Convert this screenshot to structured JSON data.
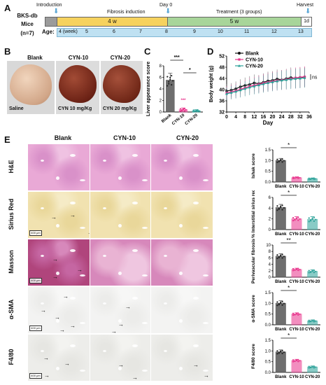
{
  "panel_labels": [
    "A",
    "B",
    "C",
    "D",
    "E"
  ],
  "timeline": {
    "model": "BKS-db",
    "mice_label": "Mice",
    "n_label": "(n=7)",
    "age_label": "Age:",
    "introduction": "Introduction",
    "fibrosis_induction": "Fibrosis induction",
    "day0": "Day 0",
    "treatment": "Treatment (3 groups)",
    "harvest": "Harvest",
    "fibrosis_duration": "4 w",
    "treatment_duration": "5 w",
    "harvest_duration": "1d",
    "ages": [
      "4 (week)",
      "5",
      "6",
      "7",
      "8",
      "9",
      "10",
      "11",
      "12",
      "13"
    ]
  },
  "livers": {
    "headers": [
      "Blank",
      "CYN-10",
      "CYN-20"
    ],
    "captions": [
      "Saline",
      "CYN 10 mg/Kg",
      "CYN 20 mg/Kg"
    ]
  },
  "histology": {
    "columns": [
      "Blank",
      "CYN-10",
      "CYN-20"
    ],
    "rows": [
      "H&E",
      "Sirius Red",
      "Masson",
      "α-SMA",
      "F4/80"
    ],
    "scalebar": "400 μm"
  },
  "colors": {
    "blank": "#555555",
    "cyn10": "#e8338b",
    "cyn20": "#2aa198",
    "fibrosis_bar": "#f6d25e",
    "treatment_bar": "#a8d59a",
    "age_bar": "#bfe1f2",
    "arrow_marker": "#5aa7d6"
  },
  "chart_data": [
    {
      "type": "bar",
      "panel": "C",
      "ylabel": "Liver appearance score",
      "categories": [
        "Blank",
        "CYN-10",
        "CYN-20"
      ],
      "values": [
        5.5,
        0.4,
        0.2
      ],
      "errors": [
        1.2,
        0.3,
        0.2
      ],
      "ylim": [
        0,
        8
      ],
      "yticks": [
        0,
        2,
        4,
        6,
        8
      ],
      "significance": [
        {
          "from": 0,
          "to": 1,
          "label": "***"
        },
        {
          "from": 1,
          "to": 2,
          "label": "*"
        },
        {
          "at": 1,
          "label": "***"
        }
      ]
    },
    {
      "type": "line",
      "panel": "D",
      "xlabel": "Day",
      "ylabel": "Body weight (g)",
      "x": [
        0,
        2,
        4,
        6,
        8,
        10,
        12,
        14,
        16,
        18,
        20,
        22,
        24,
        26,
        28,
        30,
        32,
        34
      ],
      "xticks": [
        0,
        4,
        8,
        12,
        16,
        20,
        24,
        28,
        32,
        36
      ],
      "ylim": [
        32,
        52
      ],
      "yticks": [
        32,
        36,
        40,
        44,
        48,
        52
      ],
      "series": [
        {
          "name": "Blank",
          "values": [
            39.5,
            39.8,
            40.3,
            41.0,
            41.5,
            41.8,
            42.4,
            42.1,
            42.6,
            43.1,
            43.3,
            43.8,
            43.5,
            43.9,
            44.3,
            44.0,
            44.3,
            44.5
          ],
          "err": [
            2.5,
            2.5,
            2.6,
            2.7,
            2.8,
            3.0,
            3.0,
            3.1,
            3.2,
            3.3,
            3.3,
            3.4,
            3.5,
            3.5,
            3.6,
            3.6,
            3.6,
            3.6
          ]
        },
        {
          "name": "CYN-10",
          "values": [
            38.8,
            39.2,
            39.6,
            40.1,
            40.6,
            41.2,
            41.5,
            41.9,
            42.3,
            42.6,
            42.9,
            43.2,
            43.4,
            43.6,
            43.9,
            44.2,
            44.4,
            44.6
          ],
          "err": [
            2.4,
            2.5,
            2.6,
            2.7,
            2.8,
            2.9,
            3.0,
            3.1,
            3.2,
            3.3,
            3.4,
            3.5,
            3.5,
            3.6,
            3.6,
            3.7,
            3.7,
            3.7
          ]
        },
        {
          "name": "CYN-20",
          "values": [
            38.5,
            38.9,
            39.3,
            39.8,
            40.3,
            40.8,
            41.2,
            41.6,
            42.0,
            42.4,
            42.7,
            43.0,
            43.3,
            43.5,
            43.7,
            43.9,
            44.0,
            44.2
          ],
          "err": [
            2.3,
            2.4,
            2.5,
            2.6,
            2.7,
            2.8,
            2.9,
            3.0,
            3.1,
            3.2,
            3.3,
            3.3,
            3.4,
            3.4,
            3.5,
            3.5,
            3.5,
            3.5
          ]
        }
      ],
      "annotation": "ns"
    },
    {
      "type": "bar",
      "panel": "E",
      "ylabel": "Ishak score",
      "categories": [
        "Blank",
        "CYN-10",
        "CYN-20"
      ],
      "values": [
        1.0,
        0.2,
        0.15
      ],
      "errors": [
        0.1,
        0.04,
        0.04
      ],
      "ylim": [
        0,
        1.5
      ],
      "yticks": [
        0.0,
        0.5,
        1.0,
        1.5
      ],
      "tick_labels": [
        "0.0",
        "0.5",
        "1.0",
        "1.5"
      ],
      "sig": "*"
    },
    {
      "type": "bar",
      "panel": "E",
      "ylabel": "% Interstitial sirius red",
      "categories": [
        "Blank",
        "CYN-10",
        "CYN-20"
      ],
      "values": [
        4.1,
        2.0,
        1.9
      ],
      "errors": [
        0.6,
        0.4,
        0.5
      ],
      "ylim": [
        0,
        6
      ],
      "yticks": [
        0,
        2,
        4,
        6
      ],
      "tick_labels": [
        "0",
        "2",
        "4",
        "6"
      ],
      "sig": "*"
    },
    {
      "type": "bar",
      "panel": "E",
      "ylabel": "Perivascular fibrosis",
      "categories": [
        "Blank",
        "CYN-10",
        "CYN-20"
      ],
      "values": [
        6.5,
        2.4,
        1.8
      ],
      "errors": [
        0.8,
        0.4,
        0.5
      ],
      "ylim": [
        0,
        10
      ],
      "yticks": [
        0,
        2,
        4,
        6,
        8,
        10
      ],
      "tick_labels": [
        "0",
        "2",
        "4",
        "6",
        "8",
        "10"
      ],
      "sig": "**"
    },
    {
      "type": "bar",
      "panel": "E",
      "ylabel": "α-SMA score",
      "categories": [
        "Blank",
        "CYN-10",
        "CYN-20"
      ],
      "values": [
        1.0,
        0.5,
        0.18
      ],
      "errors": [
        0.12,
        0.06,
        0.05
      ],
      "ylim": [
        0,
        1.5
      ],
      "yticks": [
        0.0,
        0.5,
        1.0,
        1.5
      ],
      "tick_labels": [
        "0.0",
        "0.5",
        "1.0",
        "1.5"
      ],
      "sig": "*"
    },
    {
      "type": "bar",
      "panel": "E",
      "ylabel": "F4/80 score",
      "categories": [
        "Blank",
        "CYN-10",
        "CYN-20"
      ],
      "values": [
        0.95,
        0.55,
        0.25
      ],
      "errors": [
        0.1,
        0.06,
        0.05
      ],
      "ylim": [
        0,
        1.5
      ],
      "yticks": [
        0.0,
        0.5,
        1.0,
        1.5
      ],
      "tick_labels": [
        "0.0",
        "0.5",
        "1.0",
        "1.5"
      ],
      "sig": "*"
    }
  ]
}
